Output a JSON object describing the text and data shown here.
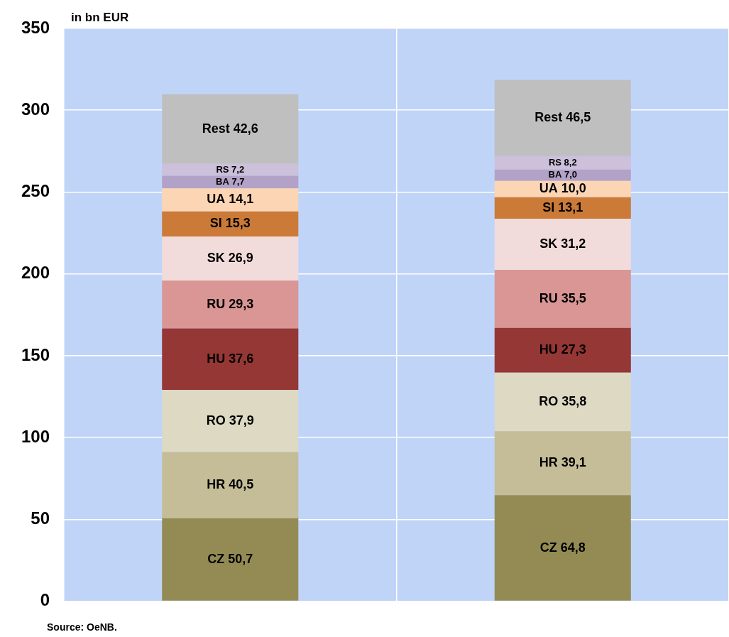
{
  "chart_data": {
    "type": "bar",
    "stacked": true,
    "categories": [
      null,
      null
    ],
    "ylabel": "in bn EUR",
    "annotations": [
      "Source: OeNB."
    ],
    "ylim": [
      0,
      350
    ],
    "yticks": [
      0,
      50,
      100,
      150,
      200,
      250,
      300,
      350
    ],
    "grid": true,
    "legend": false,
    "series": [
      {
        "name": "CZ",
        "color": "#948b54",
        "values": [
          50.7,
          64.8
        ],
        "value_labels": [
          "50,7",
          "64,8"
        ]
      },
      {
        "name": "HR",
        "color": "#c4bd97",
        "values": [
          40.5,
          39.1
        ],
        "value_labels": [
          "40,5",
          "39,1"
        ]
      },
      {
        "name": "RO",
        "color": "#ddd9c3",
        "values": [
          37.9,
          35.8
        ],
        "value_labels": [
          "37,9",
          "35,8"
        ]
      },
      {
        "name": "HU",
        "color": "#953735",
        "values": [
          37.6,
          27.3
        ],
        "value_labels": [
          "37,6",
          "27,3"
        ]
      },
      {
        "name": "RU",
        "color": "#d99694",
        "values": [
          29.3,
          35.5
        ],
        "value_labels": [
          "29,3",
          "35,5"
        ]
      },
      {
        "name": "SK",
        "color": "#f2dcdb",
        "values": [
          26.9,
          31.2
        ],
        "value_labels": [
          "26,9",
          "31,2"
        ]
      },
      {
        "name": "SI",
        "color": "#cc7a38",
        "values": [
          15.3,
          13.1
        ],
        "value_labels": [
          "15,3",
          "13,1"
        ]
      },
      {
        "name": "UA",
        "color": "#fcd5b4",
        "values": [
          14.1,
          10.0
        ],
        "value_labels": [
          "14,1",
          "10,0"
        ]
      },
      {
        "name": "BA",
        "color": "#b3a2c7",
        "values": [
          7.7,
          7.0
        ],
        "value_labels": [
          "7,7",
          "7,0"
        ]
      },
      {
        "name": "RS",
        "color": "#ccc0da",
        "values": [
          7.2,
          8.2
        ],
        "value_labels": [
          "7,2",
          "8,2"
        ]
      },
      {
        "name": "Rest",
        "color": "#bfbfbf",
        "values": [
          42.6,
          46.5
        ],
        "value_labels": [
          "42,6",
          "46,5"
        ]
      }
    ]
  }
}
